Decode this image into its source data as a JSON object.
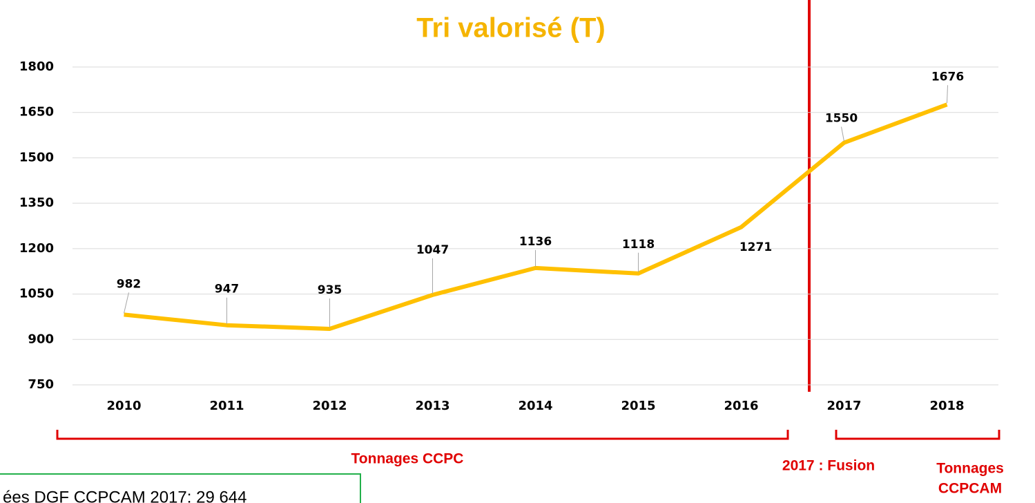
{
  "chart_data": {
    "type": "line",
    "title": "Tri valorisé (T)",
    "categories": [
      "2010",
      "2011",
      "2012",
      "2013",
      "2014",
      "2015",
      "2016",
      "2017",
      "2018"
    ],
    "values": [
      982,
      947,
      935,
      1047,
      1136,
      1118,
      1271,
      1550,
      1676
    ],
    "color": "#ffc000",
    "ylim": [
      750,
      1800
    ],
    "yticks": [
      750,
      900,
      1050,
      1200,
      1350,
      1500,
      1650,
      1800
    ],
    "grid": true,
    "annotations": [
      "Tonnages CCPC",
      "2017 : Fusion",
      "Tonnages",
      "CCPCAM",
      "ées DGF CCPCAM 2017: 29 644"
    ]
  }
}
